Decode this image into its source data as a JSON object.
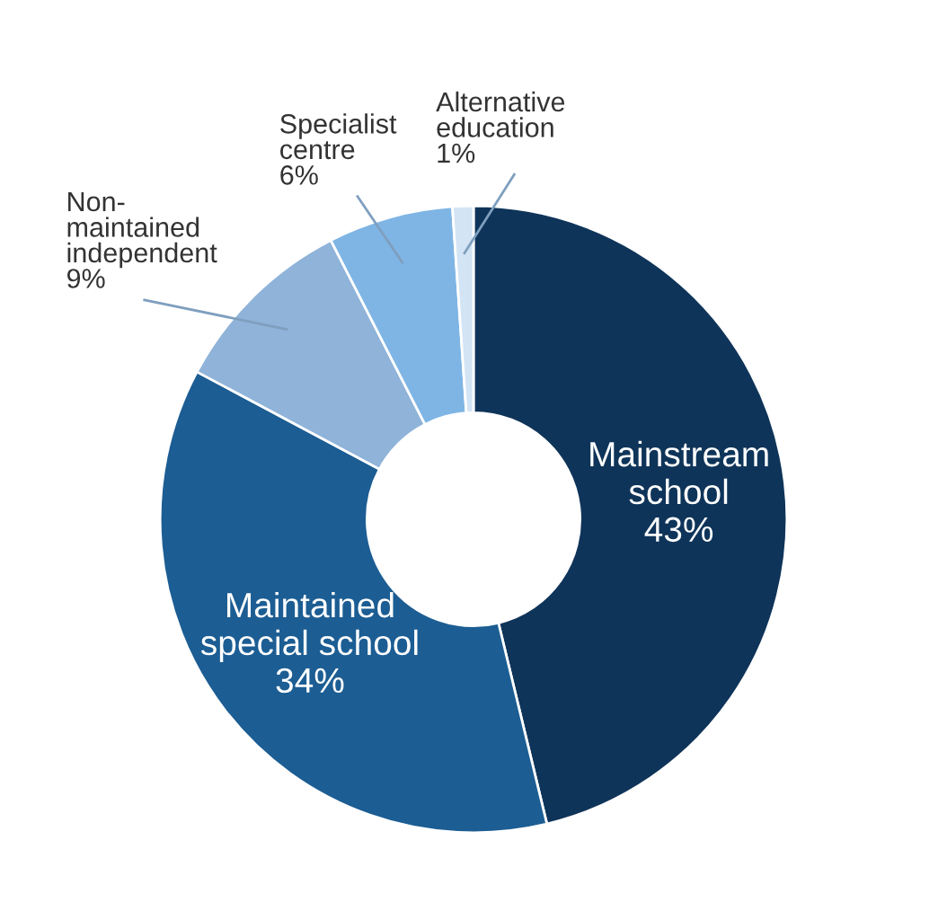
{
  "chart_data": {
    "type": "donut",
    "categories": [
      "Mainstream school",
      "Maintained special school",
      "Non-maintained independent",
      "Specialist centre",
      "Alternative education"
    ],
    "values": [
      43,
      34,
      9,
      6,
      1
    ],
    "colors": [
      "#0f3459",
      "#1c5d93",
      "#8fb3d9",
      "#7fb5e4",
      "#d3e4f4"
    ],
    "value_labels": [
      "43%",
      "34%",
      "9%",
      "6%",
      "1%"
    ],
    "legend": false
  }
}
